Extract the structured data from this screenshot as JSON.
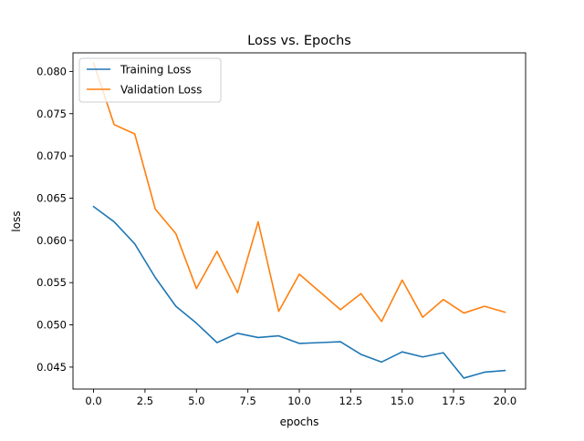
{
  "chart_data": {
    "type": "line",
    "title": "Loss vs. Epochs",
    "xlabel": "epochs",
    "ylabel": "loss",
    "xlim": [
      -1.0,
      21.0
    ],
    "ylim": [
      0.0424,
      0.0822
    ],
    "x_ticks": [
      0.0,
      2.5,
      5.0,
      7.5,
      10.0,
      12.5,
      15.0,
      17.5,
      20.0
    ],
    "x_tick_labels": [
      "0.0",
      "2.5",
      "5.0",
      "7.5",
      "10.0",
      "12.5",
      "15.0",
      "17.5",
      "20.0"
    ],
    "y_ticks": [
      0.045,
      0.05,
      0.055,
      0.06,
      0.065,
      0.07,
      0.075,
      0.08
    ],
    "y_tick_labels": [
      "0.045",
      "0.050",
      "0.055",
      "0.060",
      "0.065",
      "0.070",
      "0.075",
      "0.080"
    ],
    "grid": false,
    "legend_position": "top-left",
    "x": [
      0,
      1,
      2,
      3,
      4,
      5,
      6,
      7,
      8,
      9,
      10,
      11,
      12,
      13,
      14,
      15,
      16,
      17,
      18,
      19,
      20
    ],
    "series": [
      {
        "name": "Training Loss",
        "color": "#1f77b4",
        "values": [
          0.064,
          0.0622,
          0.0596,
          0.0556,
          0.0522,
          0.0502,
          0.0479,
          0.049,
          0.0485,
          0.0487,
          0.0478,
          0.0479,
          0.048,
          0.0465,
          0.0456,
          0.0468,
          0.0462,
          0.0467,
          0.0437,
          0.0444,
          0.0446
        ]
      },
      {
        "name": "Validation Loss",
        "color": "#ff7f0e",
        "values": [
          0.081,
          0.0737,
          0.0726,
          0.0637,
          0.0608,
          0.0543,
          0.0587,
          0.0538,
          0.0622,
          0.0516,
          0.056,
          0.0539,
          0.0518,
          0.0537,
          0.0504,
          0.0553,
          0.0509,
          0.053,
          0.0514,
          0.0522,
          0.0515
        ]
      }
    ]
  }
}
